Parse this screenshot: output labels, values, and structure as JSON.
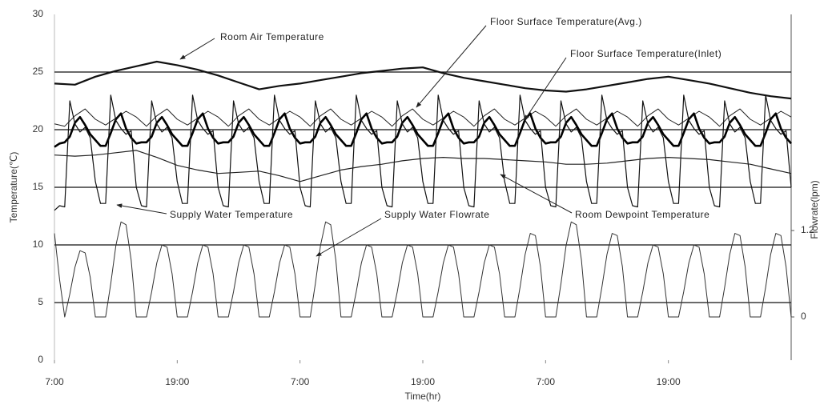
{
  "chart_data": {
    "type": "line",
    "xlabel": "Time(hr)",
    "ylabel": "Temperature(℃)",
    "y2label": "Flowrate(lpm)",
    "xlim": [
      0,
      72
    ],
    "xticks": [
      {
        "value": 0,
        "label": "7:00"
      },
      {
        "value": 12,
        "label": "19:00"
      },
      {
        "value": 24,
        "label": "7:00"
      },
      {
        "value": 36,
        "label": "19:00"
      },
      {
        "value": 48,
        "label": "7:00"
      },
      {
        "value": 60,
        "label": "19:00"
      }
    ],
    "ylim": [
      0,
      30
    ],
    "yticks": [
      0,
      5,
      10,
      15,
      20,
      25,
      30
    ],
    "y2lim": [
      -0.6,
      4.2
    ],
    "y2ticks": [
      0,
      1.2
    ],
    "grid": true,
    "x": [
      0,
      0.5,
      1,
      1.5,
      2,
      2.5,
      3,
      3.5,
      4,
      4.5,
      5,
      5.5,
      6,
      6.5,
      7,
      7.5,
      8,
      8.5,
      9,
      9.5,
      10,
      10.5,
      11,
      11.5,
      12,
      12.5,
      13,
      13.5,
      14,
      14.5,
      15,
      15.5,
      16,
      16.5,
      17,
      17.5,
      18,
      18.5,
      19,
      19.5,
      20,
      20.5,
      21,
      21.5,
      22,
      22.5,
      23,
      23.5,
      24,
      24.5,
      25,
      25.5,
      26,
      26.5,
      27,
      27.5,
      28,
      28.5,
      29,
      29.5,
      30,
      30.5,
      31,
      31.5,
      32,
      32.5,
      33,
      33.5,
      34,
      34.5,
      35,
      35.5,
      36,
      36.5,
      37,
      37.5,
      38,
      38.5,
      39,
      39.5,
      40,
      40.5,
      41,
      41.5,
      42,
      42.5,
      43,
      43.5,
      44,
      44.5,
      45,
      45.5,
      46,
      46.5,
      47,
      47.5,
      48,
      48.5,
      49,
      49.5,
      50,
      50.5,
      51,
      51.5,
      52,
      52.5,
      53,
      53.5,
      54,
      54.5,
      55,
      55.5,
      56,
      56.5,
      57,
      57.5,
      58,
      58.5,
      59,
      59.5,
      60,
      60.5,
      61,
      61.5,
      62,
      62.5,
      63,
      63.5,
      64,
      64.5,
      65,
      65.5,
      66,
      66.5,
      67,
      67.5,
      68,
      68.5,
      69,
      69.5,
      70,
      70.5,
      71,
      71.5,
      72
    ],
    "series": [
      {
        "name": "Room Air Temperature",
        "color": "#111111",
        "x": [
          0,
          2,
          4,
          6,
          8,
          10,
          12,
          14,
          16,
          18,
          20,
          22,
          24,
          26,
          28,
          30,
          32,
          34,
          36,
          38,
          40,
          42,
          44,
          46,
          48,
          50,
          52,
          54,
          56,
          58,
          60,
          62,
          64,
          66,
          68,
          70,
          72
        ],
        "values": [
          24.0,
          23.9,
          24.6,
          25.1,
          25.5,
          25.9,
          25.6,
          25.2,
          24.7,
          24.1,
          23.5,
          23.8,
          24.0,
          24.3,
          24.6,
          24.9,
          25.1,
          25.3,
          25.4,
          24.9,
          24.5,
          24.2,
          23.9,
          23.6,
          23.4,
          23.3,
          23.5,
          23.8,
          24.1,
          24.4,
          24.6,
          24.3,
          24.0,
          23.6,
          23.2,
          22.9,
          22.7
        ]
      },
      {
        "name": "Floor Surface Temperature(Avg.)",
        "color": "#222222",
        "x": [
          0,
          1,
          2,
          3,
          4,
          5,
          6,
          7,
          8,
          9,
          10,
          11,
          12,
          13,
          14,
          15,
          16,
          17,
          18,
          19,
          20,
          21,
          22,
          23,
          24,
          25,
          26,
          27,
          28,
          29,
          30,
          31,
          32,
          33,
          34,
          35,
          36,
          37,
          38,
          39,
          40,
          41,
          42,
          43,
          44,
          45,
          46,
          47,
          48,
          49,
          50,
          51,
          52,
          53,
          54,
          55,
          56,
          57,
          58,
          59,
          60,
          61,
          62,
          63,
          64,
          65,
          66,
          67,
          68,
          69,
          70,
          71,
          72
        ],
        "values": [
          20.5,
          20.3,
          21.2,
          21.8,
          20.9,
          20.4,
          21.0,
          21.6,
          21.1,
          20.3,
          21.2,
          21.8,
          20.9,
          20.4,
          21.0,
          21.6,
          21.1,
          20.3,
          21.2,
          21.8,
          20.9,
          20.4,
          21.0,
          21.6,
          21.1,
          20.3,
          21.2,
          21.8,
          20.9,
          20.4,
          21.0,
          21.6,
          21.1,
          20.3,
          21.2,
          21.8,
          20.9,
          20.4,
          21.0,
          21.6,
          21.1,
          20.3,
          21.2,
          21.8,
          20.9,
          20.4,
          21.0,
          21.6,
          21.1,
          20.3,
          21.2,
          21.8,
          20.9,
          20.4,
          21.0,
          21.6,
          21.1,
          20.3,
          21.2,
          21.8,
          20.9,
          20.4,
          21.0,
          21.6,
          21.1,
          20.3,
          21.2,
          21.8,
          20.9,
          20.4,
          21.0,
          21.6,
          21.1
        ]
      },
      {
        "name": "Floor Surface Temperature(Inlet)",
        "color": "#000000",
        "values": [
          18.5,
          18.8,
          18.9,
          19.4,
          20.6,
          21.1,
          20.4,
          19.6,
          19.1,
          18.6,
          18.6,
          19.7,
          20.9,
          21.4,
          20.1,
          19.3,
          18.8,
          18.9,
          18.9,
          19.4,
          20.6,
          21.1,
          20.4,
          19.6,
          19.1,
          18.6,
          18.6,
          19.7,
          20.9,
          21.4,
          20.1,
          19.3,
          18.8,
          18.9,
          18.9,
          19.4,
          20.6,
          21.1,
          20.4,
          19.6,
          19.1,
          18.6,
          18.6,
          19.7,
          20.9,
          21.4,
          20.1,
          19.3,
          18.8,
          18.9,
          18.9,
          19.4,
          20.6,
          21.1,
          20.4,
          19.6,
          19.1,
          18.6,
          18.6,
          19.7,
          20.9,
          21.4,
          20.1,
          19.3,
          18.8,
          18.9,
          18.9,
          19.4,
          20.6,
          21.1,
          20.4,
          19.6,
          19.1,
          18.6,
          18.6,
          19.7,
          20.9,
          21.4,
          20.1,
          19.3,
          18.8,
          18.9,
          18.9,
          19.4,
          20.6,
          21.1,
          20.4,
          19.6,
          19.1,
          18.6,
          18.6,
          19.7,
          20.9,
          21.4,
          20.1,
          19.3,
          18.8,
          18.9,
          18.9,
          19.4,
          20.6,
          21.1,
          20.4,
          19.6,
          19.1,
          18.6,
          18.6,
          19.7,
          20.9,
          21.4,
          20.1,
          19.3,
          18.8,
          18.9,
          18.9,
          19.4,
          20.6,
          21.1,
          20.4,
          19.6,
          19.1,
          18.6,
          18.6,
          19.7,
          20.9,
          21.4,
          20.1,
          19.3,
          18.8,
          18.9,
          18.9,
          19.4,
          20.6,
          21.1,
          20.4,
          19.6,
          19.1,
          18.6,
          18.6,
          19.7,
          20.9,
          21.4,
          20.1,
          19.3,
          18.8
        ]
      },
      {
        "name": "Supply Water Temperature",
        "color": "#111111",
        "values": [
          13.0,
          13.4,
          13.3,
          22.5,
          20.5,
          19.8,
          20.2,
          19.3,
          15.5,
          13.6,
          13.6,
          23.0,
          20.8,
          20.1,
          19.6,
          19.9,
          15.0,
          13.4,
          13.3,
          22.5,
          20.5,
          19.8,
          20.2,
          19.3,
          15.5,
          13.6,
          13.6,
          23.0,
          20.8,
          20.1,
          19.6,
          19.9,
          15.0,
          13.4,
          13.3,
          22.5,
          20.5,
          19.8,
          20.2,
          19.3,
          15.5,
          13.6,
          13.6,
          23.0,
          20.8,
          20.1,
          19.6,
          19.9,
          15.0,
          13.4,
          13.3,
          22.5,
          20.5,
          19.8,
          20.2,
          19.3,
          15.5,
          13.6,
          13.6,
          23.0,
          20.8,
          20.1,
          19.6,
          19.9,
          15.0,
          13.4,
          13.3,
          22.5,
          20.5,
          19.8,
          20.2,
          19.3,
          15.5,
          13.6,
          13.6,
          23.0,
          20.8,
          20.1,
          19.6,
          19.9,
          15.0,
          13.4,
          13.3,
          22.5,
          20.5,
          19.8,
          20.2,
          19.3,
          15.5,
          13.6,
          13.6,
          23.0,
          20.8,
          20.1,
          19.6,
          19.9,
          15.0,
          13.4,
          13.3,
          22.5,
          20.5,
          19.8,
          20.2,
          19.3,
          15.5,
          13.6,
          13.6,
          23.0,
          20.8,
          20.1,
          19.6,
          19.9,
          15.0,
          13.4,
          13.3,
          22.5,
          20.5,
          19.8,
          20.2,
          19.3,
          15.5,
          13.6,
          13.6,
          23.0,
          20.8,
          20.1,
          19.6,
          19.9,
          15.0,
          13.4,
          13.3,
          22.5,
          20.5,
          19.8,
          20.2,
          19.3,
          15.5,
          13.6,
          13.6,
          23.0,
          20.8,
          20.1,
          19.6,
          19.9,
          15.0
        ]
      },
      {
        "name": "Supply Water Flowrate",
        "color": "#333333",
        "axis": "y2",
        "values": [
          1.16,
          0.52,
          0,
          0.32,
          0.69,
          0.92,
          0.89,
          0.55,
          0,
          0,
          0,
          0.46,
          0.99,
          1.32,
          1.28,
          0.79,
          0,
          0,
          0,
          0.35,
          0.75,
          1.0,
          0.97,
          0.6,
          0,
          0,
          0,
          0.35,
          0.75,
          1.0,
          0.97,
          0.6,
          0,
          0,
          0,
          0.35,
          0.75,
          1.0,
          0.97,
          0.6,
          0,
          0,
          0,
          0.35,
          0.75,
          1.0,
          0.97,
          0.6,
          0,
          0,
          0,
          0.46,
          0.99,
          1.32,
          1.28,
          0.79,
          0,
          0,
          0,
          0.35,
          0.75,
          1.0,
          0.97,
          0.6,
          0,
          0,
          0,
          0.35,
          0.75,
          1.0,
          0.97,
          0.6,
          0,
          0,
          0,
          0.35,
          0.75,
          1.0,
          0.97,
          0.6,
          0,
          0,
          0,
          0.35,
          0.75,
          1.0,
          0.97,
          0.6,
          0,
          0,
          0,
          0.41,
          0.87,
          1.16,
          1.13,
          0.7,
          0,
          0,
          0,
          0.46,
          0.99,
          1.32,
          1.28,
          0.79,
          0,
          0,
          0,
          0.41,
          0.87,
          1.16,
          1.13,
          0.7,
          0,
          0,
          0,
          0.35,
          0.75,
          1.0,
          0.97,
          0.6,
          0,
          0,
          0,
          0.35,
          0.75,
          1.0,
          0.97,
          0.6,
          0,
          0,
          0,
          0.41,
          0.87,
          1.16,
          1.13,
          0.7,
          0,
          0,
          0,
          0.41,
          0.87,
          1.16,
          1.13,
          0.7,
          0
        ]
      },
      {
        "name": "Room Dewpoint Temperature",
        "color": "#222222",
        "x": [
          0,
          2,
          4,
          6,
          8,
          10,
          12,
          14,
          16,
          18,
          20,
          22,
          24,
          26,
          28,
          30,
          32,
          34,
          36,
          38,
          40,
          42,
          44,
          46,
          48,
          50,
          52,
          54,
          56,
          58,
          60,
          62,
          64,
          66,
          68,
          70,
          72
        ],
        "values": [
          17.8,
          17.7,
          17.8,
          18.0,
          18.2,
          17.6,
          16.9,
          16.5,
          16.2,
          16.3,
          16.4,
          16.0,
          15.5,
          16.0,
          16.5,
          16.8,
          17.0,
          17.3,
          17.5,
          17.6,
          17.5,
          17.5,
          17.4,
          17.3,
          17.2,
          17.0,
          17.0,
          17.1,
          17.3,
          17.5,
          17.6,
          17.5,
          17.4,
          17.2,
          17.0,
          16.6,
          16.2
        ]
      }
    ]
  }
}
